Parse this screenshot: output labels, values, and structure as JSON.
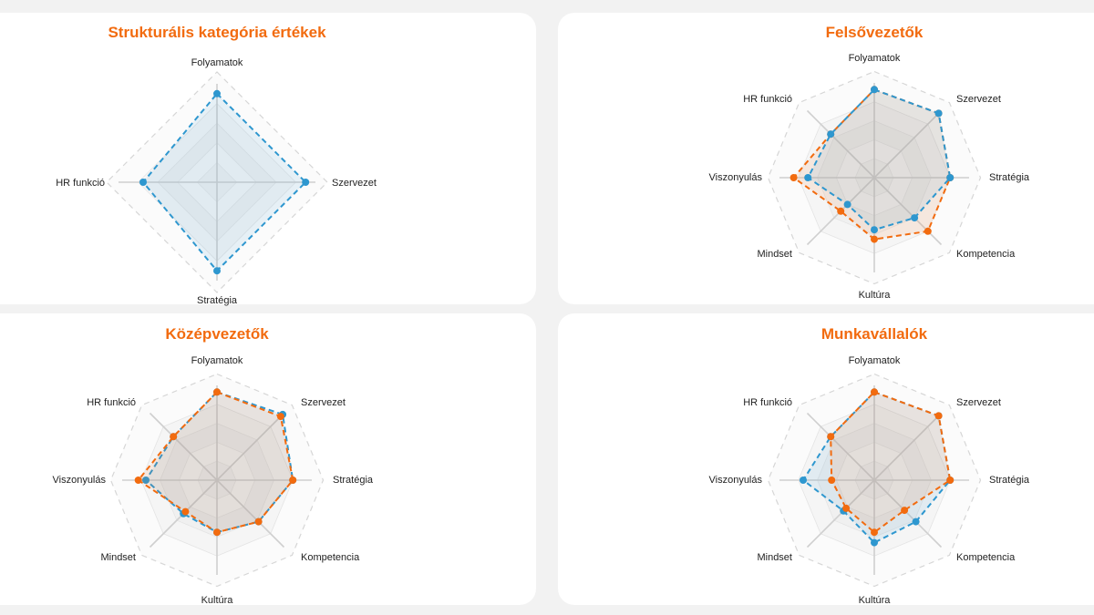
{
  "colors": {
    "orange": "#f26b0f",
    "blue": "#2e97cf",
    "grid": "#cfcfcf",
    "outer_dash": "#d6d6d6"
  },
  "chart_data": [
    {
      "type": "radar",
      "title": "Strukturális kategória értékek",
      "axes": [
        "Folyamatok",
        "Szervezet",
        "Stratégia",
        "HR funkció"
      ],
      "rmax": 1,
      "grid": true,
      "series": [
        {
          "color": "#2e97cf",
          "fill": "#2e97cf",
          "values": [
            0.9,
            0.9,
            0.9,
            0.75
          ]
        }
      ]
    },
    {
      "type": "radar",
      "title": "Felsővezetők",
      "axes": [
        "Folyamatok",
        "Szervezet",
        "Stratégia",
        "Kompetencia",
        "Kultúra",
        "Mindset",
        "Viszonyulás",
        "HR funkció"
      ],
      "rmax": 1,
      "grid": true,
      "series": [
        {
          "color": "#f26b0f",
          "fill": "#f26b0f",
          "values": [
            0.93,
            0.96,
            0.8,
            0.8,
            0.65,
            0.5,
            0.85,
            0.65
          ]
        },
        {
          "color": "#2e97cf",
          "fill": "#2e97cf",
          "values": [
            0.93,
            0.96,
            0.8,
            0.6,
            0.55,
            0.4,
            0.7,
            0.65
          ]
        }
      ]
    },
    {
      "type": "radar",
      "title": "Középvezetők",
      "axes": [
        "Folyamatok",
        "Szervezet",
        "Stratégia",
        "Kompetencia",
        "Kultúra",
        "Mindset",
        "Viszonyulás",
        "HR funkció"
      ],
      "rmax": 1,
      "grid": true,
      "series": [
        {
          "color": "#2e97cf",
          "fill": "#2e97cf",
          "values": [
            0.93,
            0.98,
            0.8,
            0.62,
            0.55,
            0.5,
            0.75,
            0.65
          ]
        },
        {
          "color": "#f26b0f",
          "fill": "#f26b0f",
          "values": [
            0.93,
            0.95,
            0.8,
            0.62,
            0.55,
            0.47,
            0.83,
            0.65
          ]
        }
      ]
    },
    {
      "type": "radar",
      "title": "Munkavállalók",
      "axes": [
        "Folyamatok",
        "Szervezet",
        "Stratégia",
        "Kompetencia",
        "Kultúra",
        "Mindset",
        "Viszonyulás",
        "HR funkció"
      ],
      "rmax": 1,
      "grid": true,
      "series": [
        {
          "color": "#2e97cf",
          "fill": "#2e97cf",
          "values": [
            0.93,
            0.96,
            0.8,
            0.62,
            0.66,
            0.46,
            0.75,
            0.65
          ]
        },
        {
          "color": "#f26b0f",
          "fill": "#f26b0f",
          "values": [
            0.93,
            0.96,
            0.8,
            0.45,
            0.55,
            0.42,
            0.45,
            0.65
          ]
        }
      ]
    }
  ]
}
